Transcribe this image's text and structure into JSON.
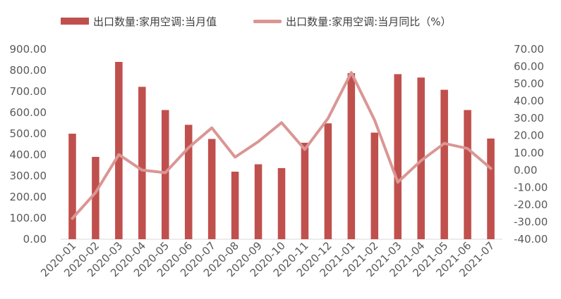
{
  "chart_data": {
    "type": "bar",
    "title": "",
    "xlabel": "",
    "ylabel": "",
    "categories": [
      "2020-01",
      "2020-02",
      "2020-03",
      "2020-04",
      "2020-05",
      "2020-06",
      "2020-07",
      "2020-08",
      "2020-09",
      "2020-10",
      "2020-11",
      "2020-12",
      "2021-01",
      "2021-02",
      "2021-03",
      "2021-04",
      "2021-05",
      "2021-06",
      "2021-07"
    ],
    "series": [
      {
        "name": "出口数量:家用空调:当月值",
        "type": "bar",
        "axis": "left",
        "color": "#c0504d",
        "values": [
          500,
          390,
          840,
          722,
          612,
          542,
          475,
          320,
          355,
          337,
          457,
          549,
          787,
          505,
          782,
          766,
          708,
          612,
          477
        ]
      },
      {
        "name": "出口数量:家用空调:当月同比（%）",
        "type": "line",
        "axis": "right",
        "color": "#da9694",
        "values": [
          -28,
          -13,
          9,
          0,
          -1.5,
          13,
          24.5,
          7.5,
          16.5,
          27.5,
          12,
          30,
          56.5,
          29,
          -7,
          5.5,
          15.5,
          12.5,
          1
        ]
      }
    ],
    "ylim": [
      0,
      900
    ],
    "y2lim": [
      -40,
      70
    ],
    "yticks": [
      "0.00",
      "100.00",
      "200.00",
      "300.00",
      "400.00",
      "500.00",
      "600.00",
      "700.00",
      "800.00",
      "900.00"
    ],
    "y2ticks": [
      "-40.00",
      "-30.00",
      "-20.00",
      "-10.00",
      "0.00",
      "10.00",
      "20.00",
      "30.00",
      "40.00",
      "50.00",
      "60.00",
      "70.00"
    ],
    "grid": false,
    "legend_position": "top"
  }
}
